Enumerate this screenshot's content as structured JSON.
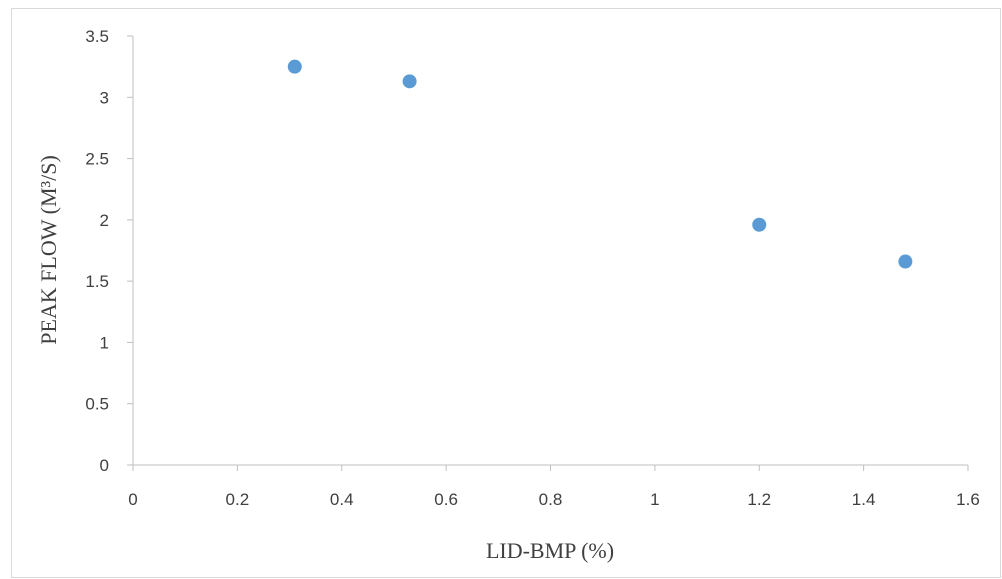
{
  "chart_data": {
    "type": "scatter",
    "title": "",
    "xlabel": "LID-BMP (%)",
    "ylabel": "PEAK FLOW (M³/S)",
    "xlim": [
      0,
      1.6
    ],
    "ylim": [
      0,
      3.5
    ],
    "x_ticks": [
      "0",
      "0.2",
      "0.4",
      "0.6",
      "0.8",
      "1",
      "1.2",
      "1.4",
      "1.6"
    ],
    "y_ticks": [
      "0",
      "0.5",
      "1",
      "1.5",
      "2",
      "2.5",
      "3",
      "3.5"
    ],
    "grid": false,
    "legend": "none",
    "series": [
      {
        "color": "#5b9bd5",
        "points": [
          {
            "x": 0.31,
            "y": 3.25
          },
          {
            "x": 0.53,
            "y": 3.13
          },
          {
            "x": 1.2,
            "y": 1.96
          },
          {
            "x": 1.48,
            "y": 1.66
          }
        ]
      }
    ]
  }
}
